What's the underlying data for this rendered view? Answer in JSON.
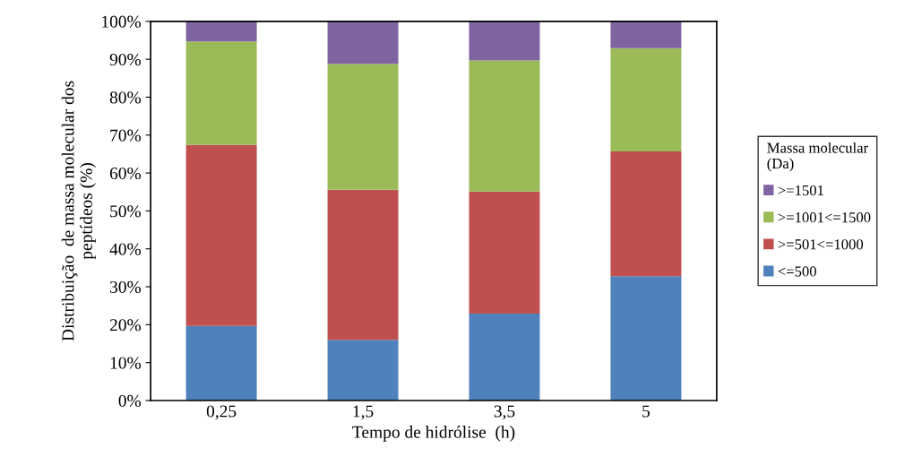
{
  "chart_data": {
    "type": "bar",
    "stacked": true,
    "xlabel": "Tempo de hidrólise  (h)",
    "ylabel": "Distribuição  de massa molecular dos\npeptídeos (%)",
    "legend_title": "Massa molecular\n(Da)",
    "legend": "right",
    "categories": [
      "0,25",
      "1,5",
      "3,5",
      "5"
    ],
    "series": [
      {
        "name": "<=500",
        "color": "#4f81bd",
        "values": [
          19.7,
          16.0,
          22.9,
          32.8
        ]
      },
      {
        "name": ">=501<=1000",
        "color": "#c0504d",
        "values": [
          47.7,
          39.6,
          32.2,
          32.9
        ]
      },
      {
        "name": ">=1001<=1500",
        "color": "#9bbb59",
        "values": [
          27.3,
          33.2,
          34.6,
          27.2
        ]
      },
      {
        "name": ">=1501",
        "color": "#8064a2",
        "values": [
          5.3,
          11.2,
          10.3,
          7.1
        ]
      }
    ],
    "ylim": [
      0,
      100
    ],
    "yticks": [
      {
        "value": 0,
        "label": "0%"
      },
      {
        "value": 10,
        "label": "10%"
      },
      {
        "value": 20,
        "label": "20%"
      },
      {
        "value": 30,
        "label": "30%"
      },
      {
        "value": 40,
        "label": "40%"
      },
      {
        "value": 50,
        "label": "50%"
      },
      {
        "value": 60,
        "label": "60%"
      },
      {
        "value": 70,
        "label": "70%"
      },
      {
        "value": 80,
        "label": "80%"
      },
      {
        "value": 90,
        "label": "90%"
      },
      {
        "value": 100,
        "label": "100%"
      }
    ],
    "grid": false
  }
}
